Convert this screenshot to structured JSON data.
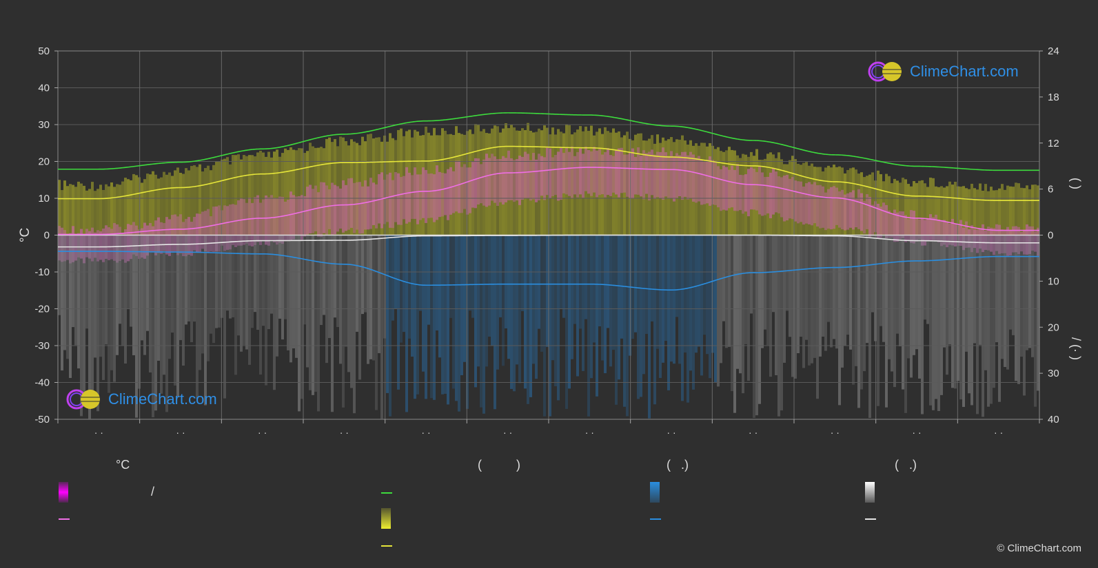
{
  "chart_data": {
    "type": "area",
    "months_ticks": [
      "· ·",
      "· ·",
      "· ·",
      "· ·",
      "· ·",
      "· ·",
      "· ·",
      "· ·",
      "· ·",
      "· ·",
      "· ·",
      "· ·"
    ],
    "left_axis": {
      "label": "°C",
      "ylim": [
        -50,
        50
      ],
      "ticks": [
        50,
        40,
        30,
        20,
        10,
        0,
        -10,
        -20,
        -30,
        -40,
        -50
      ]
    },
    "right_axis_top": {
      "ylim": [
        0,
        24
      ],
      "ticks": [
        24,
        18,
        12,
        6,
        0
      ],
      "label": "(  )"
    },
    "right_axis_bottom": {
      "ylim": [
        0,
        40
      ],
      "ticks": [
        0,
        10,
        20,
        30,
        40
      ],
      "label": "/  (·  )"
    },
    "series": [
      {
        "key": "daylight",
        "color": "#3ddc3d",
        "values": [
          17.9,
          19.8,
          23.4,
          27.4,
          31.0,
          33.2,
          32.6,
          29.6,
          25.7,
          21.8,
          18.7,
          17.6
        ]
      },
      {
        "key": "sunshine",
        "color": "#e6e63a",
        "values": [
          9.9,
          12.9,
          16.6,
          19.7,
          20.1,
          24.1,
          23.7,
          21.2,
          18.8,
          14.5,
          10.6,
          9.4
        ]
      },
      {
        "key": "temp_mean",
        "color": "#f06ee6",
        "values": [
          0.2,
          1.6,
          4.6,
          8.2,
          11.9,
          16.9,
          18.4,
          17.8,
          13.7,
          10.1,
          4.6,
          1.3
        ]
      },
      {
        "key": "snow",
        "color": "#e6e6e6",
        "values": [
          -3.2,
          -2.5,
          -1.5,
          -1.4,
          -0.2,
          -0.1,
          0.0,
          0.0,
          0.0,
          -0.2,
          -1.5,
          -2.1
        ]
      },
      {
        "key": "precipitation",
        "color": "#2a8ee0",
        "values": [
          -4.4,
          -4.6,
          -5.1,
          -7.9,
          -13.6,
          -13.3,
          -13.3,
          -14.9,
          -10.2,
          -8.8,
          -7.0,
          -5.8
        ]
      }
    ],
    "bands": {
      "daylight_band_top": [
        15.0,
        19.0,
        23.0,
        27.0,
        29.5,
        30.6,
        30.0,
        27.5,
        23.5,
        19.5,
        16.0,
        14.8
      ],
      "temp_band_top": [
        3.0,
        6.0,
        11.0,
        15.5,
        19.0,
        23.0,
        24.5,
        24.0,
        19.0,
        14.0,
        7.0,
        3.5
      ],
      "temp_band_bottom": [
        -8.0,
        -6.0,
        -3.0,
        0.0,
        3.0,
        8.0,
        10.0,
        9.0,
        5.0,
        1.0,
        -3.0,
        -6.0
      ]
    },
    "grid": true
  },
  "legend": {
    "col1": {
      "title": "°C",
      "item1": "/"
    },
    "col2": {
      "title": "(          )"
    },
    "col3": {
      "title": "(   .)"
    },
    "col4": {
      "title": "(   .)"
    }
  },
  "colors": {
    "background": "#2f2f2f",
    "grid": "#5a5a5a",
    "axis_text": "#dddddd"
  },
  "brand": {
    "logo_text": "ClimeChart.com",
    "copyright": "© ClimeChart.com"
  }
}
